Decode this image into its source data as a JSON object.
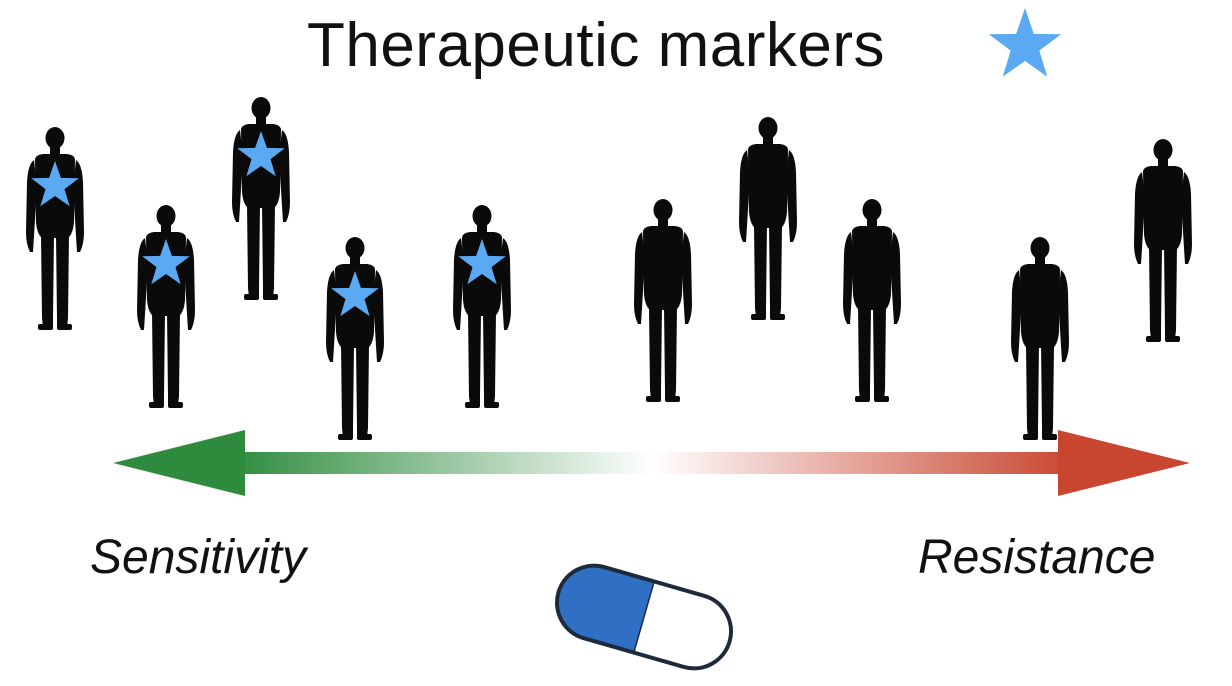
{
  "title": "Therapeutic markers",
  "marker_color": "#5aa9f2",
  "axis": {
    "left_label": "Sensitivity",
    "right_label": "Resistance",
    "left_color": "#2e8b3e",
    "right_color": "#c8452f"
  },
  "icons": {
    "person": "person-silhouette-icon",
    "marker": "star-icon",
    "drug": "capsule-icon"
  },
  "people": [
    {
      "marker": true
    },
    {
      "marker": true
    },
    {
      "marker": true
    },
    {
      "marker": true
    },
    {
      "marker": true
    },
    {
      "marker": false
    },
    {
      "marker": false
    },
    {
      "marker": false
    },
    {
      "marker": false
    },
    {
      "marker": false
    }
  ],
  "capsule": {
    "left_color": "#2f6fc4",
    "right_color": "#ffffff"
  }
}
